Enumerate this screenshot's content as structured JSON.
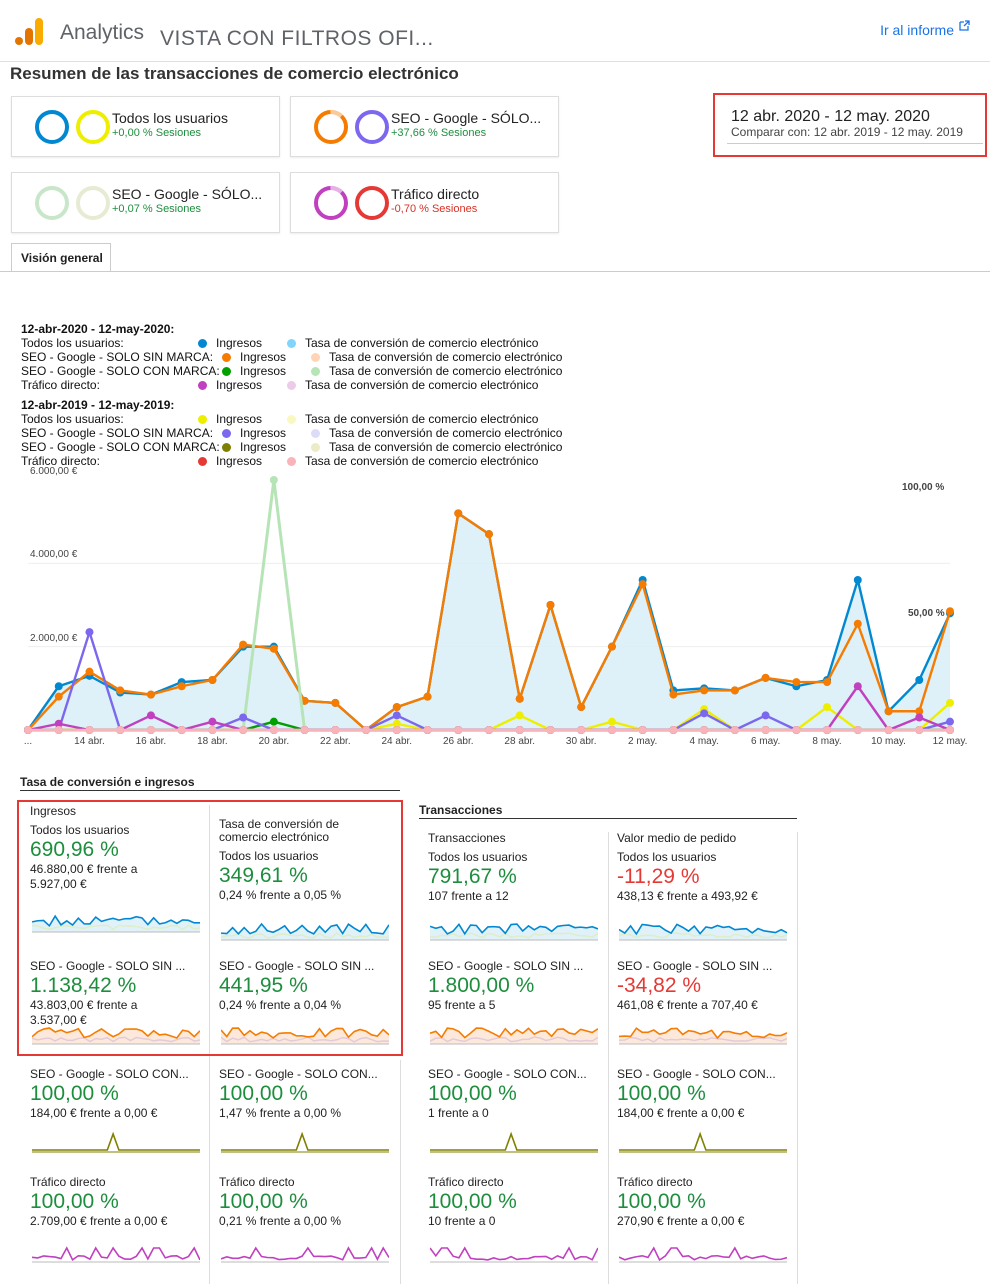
{
  "header": {
    "app_name": "Analytics",
    "view_name": "VISTA CON FILTROS OFI...",
    "report_link": "Ir al informe"
  },
  "page_title": "Resumen de las transacciones de comercio electrónico",
  "segments": [
    {
      "name": "Todos los usuarios",
      "change": "+0,00 % Sesiones",
      "change_color": "#1e8e3e",
      "color_current": "#0288d1",
      "color_previous": "#eeee00"
    },
    {
      "name": "SEO - Google - SÓLO...",
      "change": "+37,66 % Sesiones",
      "change_color": "#1e8e3e",
      "color_current": "#f57c00",
      "color_previous": "#7b68ee"
    },
    {
      "name": "SEO - Google - SÓLO...",
      "change": "+0,07 % Sesiones",
      "change_color": "#1e8e3e",
      "color_current": "#c8e6c9",
      "color_previous": "#e6ebd3"
    },
    {
      "name": "Tráfico directo",
      "change": "-0,70 % Sesiones",
      "change_color": "#d93025",
      "color_current": "#c040c0",
      "color_previous": "#e53935"
    }
  ],
  "date_range": {
    "current": "12 abr. 2020 - 12 may. 2020",
    "compare": "Comparar con: 12 abr. 2019 - 12 may. 2019"
  },
  "tab": "Visión general",
  "legend": {
    "groups": [
      {
        "title": "12-abr-2020 - 12-may-2020:",
        "rows": [
          {
            "segment": "Todos los usuarios:",
            "metric1": "Ingresos",
            "color1": "#0288d1",
            "metric2": "Tasa de conversión de comercio electrónico",
            "color2": "#81d4fa"
          },
          {
            "segment": "SEO - Google - SOLO SIN MARCA:",
            "metric1": "Ingresos",
            "color1": "#f57c00",
            "metric2": "Tasa de conversión de comercio electrónico",
            "color2": "#ffd5b5"
          },
          {
            "segment": "SEO - Google - SOLO CON MARCA:",
            "metric1": "Ingresos",
            "color1": "#00a000",
            "metric2": "Tasa de conversión de comercio electrónico",
            "color2": "#b7e4b7"
          },
          {
            "segment": "Tráfico directo:",
            "metric1": "Ingresos",
            "color1": "#c040c0",
            "metric2": "Tasa de conversión de comercio electrónico",
            "color2": "#eccaea"
          }
        ]
      },
      {
        "title": "12-abr-2019 - 12-may-2019:",
        "rows": [
          {
            "segment": "Todos los usuarios:",
            "metric1": "Ingresos",
            "color1": "#eeee00",
            "metric2": "Tasa de conversión de comercio electrónico",
            "color2": "#f8f8c0"
          },
          {
            "segment": "SEO - Google - SOLO SIN MARCA:",
            "metric1": "Ingresos",
            "color1": "#7b68ee",
            "metric2": "Tasa de conversión de comercio electrónico",
            "color2": "#dcdcf8"
          },
          {
            "segment": "SEO - Google - SOLO CON MARCA:",
            "metric1": "Ingresos",
            "color1": "#808000",
            "metric2": "Tasa de conversión de comercio electrónico",
            "color2": "#ecebc8"
          },
          {
            "segment": "Tráfico directo:",
            "metric1": "Ingresos",
            "color1": "#e53935",
            "metric2": "Tasa de conversión de comercio electrónico",
            "color2": "#f8b4b8"
          }
        ]
      }
    ]
  },
  "chart_data": {
    "type": "line",
    "x": [
      "...",
      "13 abr.",
      "14 abr.",
      "15 abr.",
      "16 abr.",
      "17 abr.",
      "18 abr.",
      "19 abr.",
      "20 abr.",
      "21 abr.",
      "22 abr.",
      "23 abr.",
      "24 abr.",
      "25 abr.",
      "26 abr.",
      "27 abr.",
      "28 abr.",
      "29 abr.",
      "30 abr.",
      "1 may.",
      "2 may.",
      "3 may.",
      "4 may.",
      "5 may.",
      "6 may.",
      "7 may.",
      "8 may.",
      "9 may.",
      "10 may.",
      "11 may.",
      "12 may."
    ],
    "x_tick_labels": [
      "...",
      "14 abr.",
      "16 abr.",
      "18 abr.",
      "20 abr.",
      "22 abr.",
      "24 abr.",
      "26 abr.",
      "28 abr.",
      "30 abr.",
      "2 may.",
      "4 may.",
      "6 may.",
      "8 may.",
      "10 may.",
      "12 may."
    ],
    "y_left_ticks": [
      "6.000,00 €",
      "4.000,00 €",
      "2.000,00 €"
    ],
    "y_right_ticks": [
      "100,00 %",
      "50,00 %"
    ],
    "ylim_left": [
      0,
      6000
    ],
    "ylim_right": [
      0,
      100
    ],
    "series": [
      {
        "name": "Todos los usuarios: Ingresos (2020)",
        "color": "#0288d1",
        "fill": true,
        "values": [
          0,
          1050,
          1300,
          900,
          850,
          1150,
          1200,
          2000,
          2000,
          700,
          650,
          0,
          550,
          800,
          5200,
          4700,
          750,
          3000,
          550,
          2000,
          3600,
          950,
          1000,
          950,
          1250,
          1050,
          1200,
          3600,
          450,
          1200,
          2800
        ]
      },
      {
        "name": "SEO - Google - SOLO SIN MARCA: Ingresos (2020)",
        "color": "#f57c00",
        "values": [
          0,
          800,
          1400,
          950,
          850,
          1050,
          1200,
          2050,
          1950,
          700,
          650,
          0,
          550,
          800,
          5200,
          4700,
          750,
          3000,
          550,
          2000,
          3500,
          850,
          950,
          950,
          1250,
          1150,
          1150,
          2550,
          450,
          450,
          2850
        ]
      },
      {
        "name": "SEO - Google - SOLO CON MARCA: Tasa de conversión (2020)",
        "color": "#b7e4b7",
        "values": [
          0,
          0,
          0,
          0,
          0,
          0,
          0,
          0,
          100,
          0,
          0,
          0,
          0,
          0,
          0,
          0,
          0,
          0,
          0,
          0,
          0,
          0,
          0,
          0,
          0,
          0,
          0,
          0,
          0,
          0,
          0
        ]
      },
      {
        "name": "SEO - Google - SOLO CON MARCA: Ingresos (2020)",
        "color": "#00a000",
        "values": [
          0,
          0,
          0,
          0,
          0,
          0,
          0,
          0,
          200,
          0,
          0,
          0,
          0,
          0,
          0,
          0,
          0,
          0,
          0,
          0,
          0,
          0,
          0,
          0,
          0,
          0,
          0,
          0,
          0,
          0,
          0
        ]
      },
      {
        "name": "Todos los usuarios: Ingresos (2019)",
        "color": "#eeee00",
        "values": [
          0,
          0,
          0,
          0,
          0,
          0,
          0,
          0,
          0,
          0,
          0,
          0,
          150,
          0,
          0,
          0,
          350,
          0,
          0,
          200,
          0,
          0,
          500,
          0,
          0,
          0,
          550,
          0,
          0,
          0,
          650
        ]
      },
      {
        "name": "SEO - Google - SOLO SIN MARCA: Ingresos (2019)",
        "color": "#7b68ee",
        "values": [
          0,
          0,
          2350,
          0,
          0,
          0,
          0,
          300,
          0,
          0,
          0,
          0,
          350,
          0,
          0,
          0,
          0,
          0,
          0,
          0,
          0,
          0,
          400,
          0,
          350,
          0,
          0,
          0,
          0,
          0,
          200
        ]
      },
      {
        "name": "Tráfico directo: Ingresos (2020)",
        "color": "#c040c0",
        "values": [
          0,
          150,
          0,
          0,
          350,
          0,
          200,
          0,
          0,
          0,
          0,
          0,
          0,
          0,
          0,
          0,
          0,
          0,
          0,
          0,
          0,
          0,
          0,
          0,
          0,
          0,
          0,
          1050,
          0,
          300,
          0
        ]
      },
      {
        "name": "Tráfico directo: Ingresos (2019)",
        "color": "#f8b4b8",
        "values": [
          0,
          0,
          0,
          0,
          0,
          0,
          0,
          0,
          0,
          0,
          0,
          0,
          0,
          0,
          0,
          0,
          0,
          0,
          0,
          0,
          0,
          0,
          0,
          0,
          0,
          0,
          0,
          0,
          0,
          0,
          0
        ]
      }
    ]
  },
  "section_conv": "Tasa de conversión e ingresos",
  "section_trans": "Transacciones",
  "cards": [
    {
      "title": "Todos los usuarios",
      "head": "Ingresos",
      "value": "690,96 %",
      "color": "#1e8e3e",
      "sub": "46.880,00 € frente a",
      "sub2": "5.927,00 €",
      "spark": "blue"
    },
    {
      "title": "Todos los usuarios",
      "head": "Tasa de conversión de",
      "head2": "comercio electrónico",
      "value": "349,61 %",
      "color": "#1e8e3e",
      "sub": "0,24 % frente a 0,05 %",
      "spark": "blue"
    },
    {
      "title": "Todos los usuarios",
      "head": "Transacciones",
      "value": "791,67 %",
      "color": "#1e8e3e",
      "sub": "107 frente a 12",
      "spark": "blue"
    },
    {
      "title": "Todos los usuarios",
      "head": "Valor medio de pedido",
      "value": "-11,29 %",
      "color": "#e53935",
      "sub": "438,13 € frente a 493,92 €",
      "spark": "blue"
    },
    {
      "title": "SEO - Google - SOLO SIN ...",
      "value": "1.138,42 %",
      "color": "#1e8e3e",
      "sub": "43.803,00 € frente a",
      "sub2": "3.537,00 €",
      "spark": "orange"
    },
    {
      "title": "SEO - Google - SOLO SIN ...",
      "value": "441,95 %",
      "color": "#1e8e3e",
      "sub": "0,24 % frente a 0,04 %",
      "spark": "orange"
    },
    {
      "title": "SEO - Google - SOLO SIN ...",
      "value": "1.800,00 %",
      "color": "#1e8e3e",
      "sub": "95 frente a 5",
      "spark": "orange"
    },
    {
      "title": "SEO - Google - SOLO SIN ...",
      "value": "-34,82 %",
      "color": "#e53935",
      "sub": "461,08 € frente a 707,40 €",
      "spark": "orange"
    },
    {
      "title": "SEO - Google - SOLO CON...",
      "value": "100,00 %",
      "color": "#1e8e3e",
      "sub": "184,00 € frente a 0,00 €",
      "spark": "olive"
    },
    {
      "title": "SEO - Google - SOLO CON...",
      "value": "100,00 %",
      "color": "#1e8e3e",
      "sub": "1,47 % frente a 0,00 %",
      "spark": "olive"
    },
    {
      "title": "SEO - Google - SOLO CON...",
      "value": "100,00 %",
      "color": "#1e8e3e",
      "sub": "1 frente a 0",
      "spark": "olive"
    },
    {
      "title": "SEO - Google - SOLO CON...",
      "value": "100,00 %",
      "color": "#1e8e3e",
      "sub": "184,00 € frente a 0,00 €",
      "spark": "olive"
    },
    {
      "title": "Tráfico directo",
      "value": "100,00 %",
      "color": "#1e8e3e",
      "sub": "2.709,00 € frente a 0,00 €",
      "spark": "magenta"
    },
    {
      "title": "Tráfico directo",
      "value": "100,00 %",
      "color": "#1e8e3e",
      "sub": "0,21 % frente a 0,00 %",
      "spark": "magenta"
    },
    {
      "title": "Tráfico directo",
      "value": "100,00 %",
      "color": "#1e8e3e",
      "sub": "10 frente a 0",
      "spark": "magenta"
    },
    {
      "title": "Tráfico directo",
      "value": "100,00 %",
      "color": "#1e8e3e",
      "sub": "270,90 € frente a 0,00 €",
      "spark": "magenta"
    }
  ]
}
